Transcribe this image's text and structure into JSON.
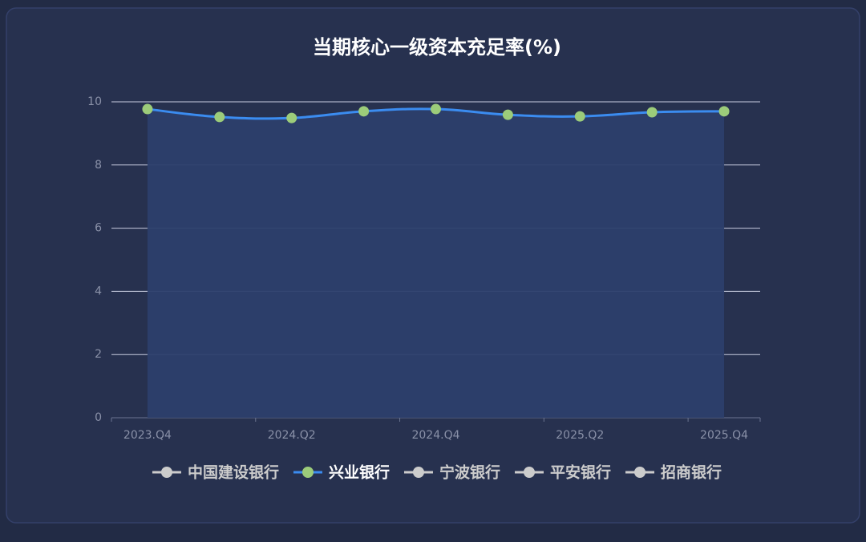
{
  "chart_data": {
    "type": "line",
    "title": "当期核心一级资本充足率(%)",
    "categories": [
      "2023.Q4",
      null,
      "2024.Q2",
      null,
      "2024.Q4",
      null,
      "2025.Q2",
      null,
      "2025.Q4"
    ],
    "series": [
      {
        "name": "兴业银行",
        "color": "#3b8cf0",
        "marker_color": "#9ccc7a",
        "area_color": "#2c3f6b",
        "values": [
          9.77,
          9.52,
          9.49,
          9.7,
          9.77,
          9.59,
          9.54,
          9.67,
          9.7
        ]
      }
    ],
    "ylim": [
      0,
      10
    ],
    "yticks": [
      0,
      2,
      4,
      6,
      8,
      10
    ],
    "grid": true,
    "legend": {
      "position": "bottom",
      "items": [
        "中国建设银行",
        "兴业银行",
        "宁波银行",
        "平安银行",
        "招商银行"
      ],
      "active": [
        1
      ],
      "inactive_color": "#cccccc"
    }
  }
}
